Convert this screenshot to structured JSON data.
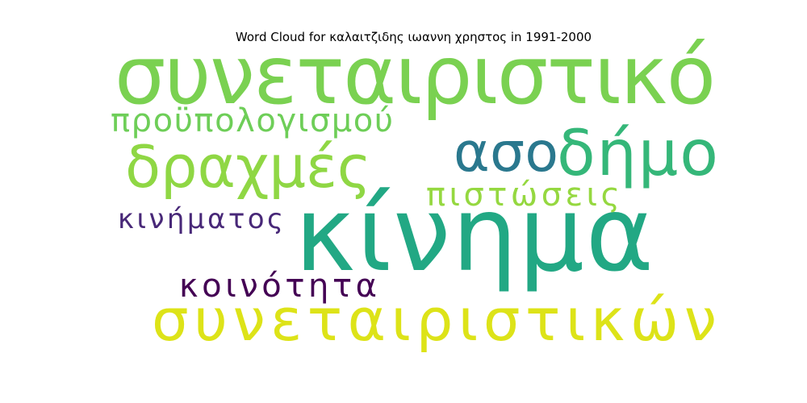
{
  "chart_data": {
    "type": "wordcloud",
    "title": "Word Cloud for καλαιτζιδης ιωαννη χρηστος in 1991-2000",
    "words": [
      {
        "text": "συνεταιριστικό",
        "weight": 1.0,
        "color": "#7ad151"
      },
      {
        "text": "κίνημα",
        "weight": 1.0,
        "color": "#22a884"
      },
      {
        "text": "συνεταιριστικών",
        "weight": 0.78,
        "color": "#dde318"
      },
      {
        "text": "δραχμές",
        "weight": 0.72,
        "color": "#8fd744"
      },
      {
        "text": "δήμο",
        "weight": 0.72,
        "color": "#35b779"
      },
      {
        "text": "ασο",
        "weight": 0.72,
        "color": "#2a788e"
      },
      {
        "text": "προϋπολογισμού",
        "weight": 0.45,
        "color": "#6ece58"
      },
      {
        "text": "πιστώσεις",
        "weight": 0.45,
        "color": "#95d840"
      },
      {
        "text": "κοινότητα",
        "weight": 0.45,
        "color": "#440154"
      },
      {
        "text": "κινήματος",
        "weight": 0.4,
        "color": "#482878"
      }
    ]
  }
}
